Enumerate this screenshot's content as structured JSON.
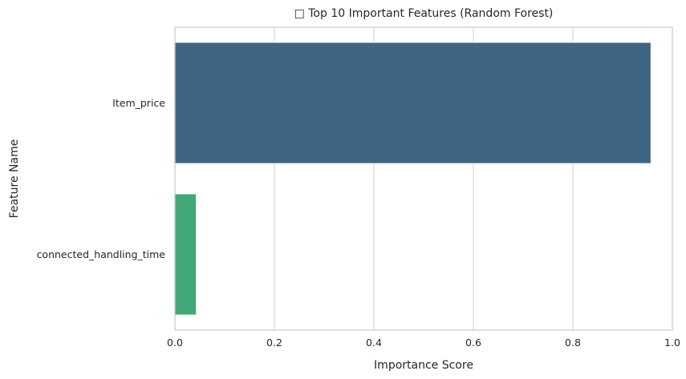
{
  "chart_data": {
    "type": "bar",
    "orientation": "horizontal",
    "title": "□ Top 10 Important Features (Random Forest)",
    "xlabel": "Importance Score",
    "ylabel": "Feature Name",
    "categories": [
      "Item_price",
      "connected_handling_time"
    ],
    "values": [
      0.957,
      0.043
    ],
    "colors": [
      "#3e6683",
      "#42a878"
    ],
    "xlim": [
      0,
      1.0
    ],
    "xticks": [
      0.0,
      0.2,
      0.4,
      0.6,
      0.8,
      1.0
    ],
    "xtick_labels": [
      "0.0",
      "0.2",
      "0.4",
      "0.6",
      "0.8",
      "1.0"
    ],
    "grid": "vertical",
    "legend": "none"
  }
}
